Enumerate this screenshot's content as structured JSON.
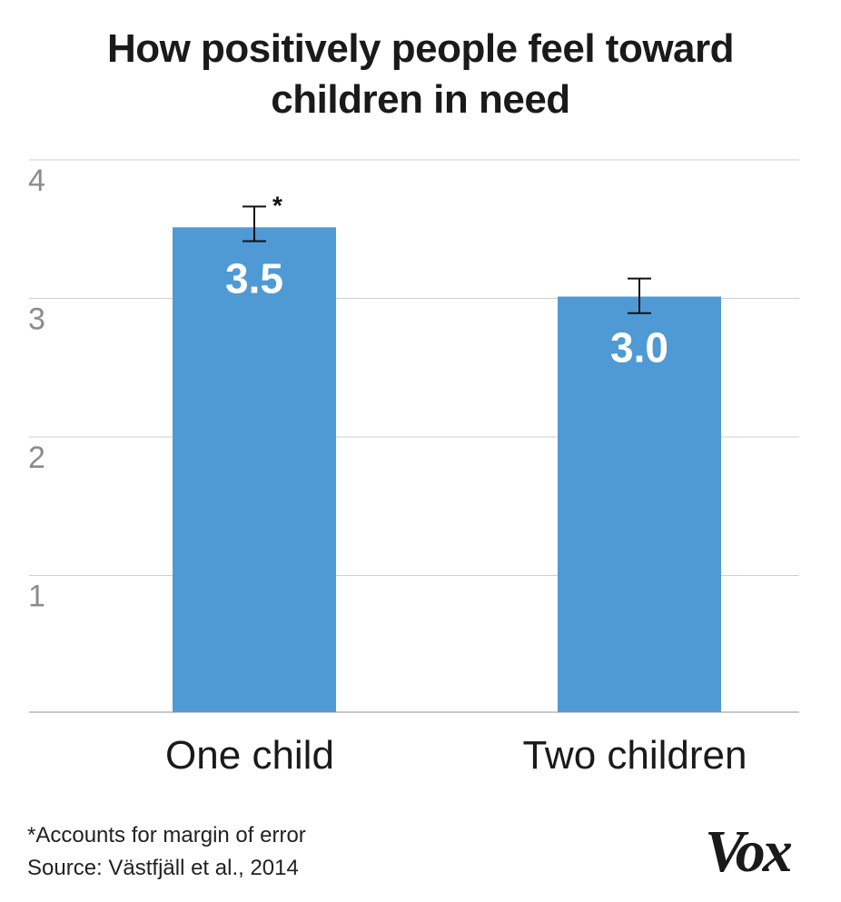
{
  "title_lines": [
    "How positively people feel toward",
    "children in need"
  ],
  "chart_data": {
    "type": "bar",
    "categories": [
      "One child",
      "Two children"
    ],
    "values": [
      3.5,
      3.0
    ],
    "data_labels": [
      "3.5",
      "3.0"
    ],
    "error_bars": [
      {
        "low": 3.4,
        "high": 3.65
      },
      {
        "low": 2.88,
        "high": 3.13
      }
    ],
    "annotations": [
      {
        "category": "One child",
        "text": "*"
      }
    ],
    "ylim": [
      0,
      4
    ],
    "yticks": [
      1,
      2,
      3,
      4
    ],
    "grid": true,
    "colors": {
      "bar": "#4f9ad4",
      "grid": "#cfcfcf",
      "tick_label": "#8c8c8c",
      "category_label": "#1a1a1a",
      "data_label": "#ffffff"
    }
  },
  "footnote": {
    "note": "*Accounts for margin of error",
    "source": "Source: Västfjäll et al., 2014"
  },
  "logo": "Vox"
}
